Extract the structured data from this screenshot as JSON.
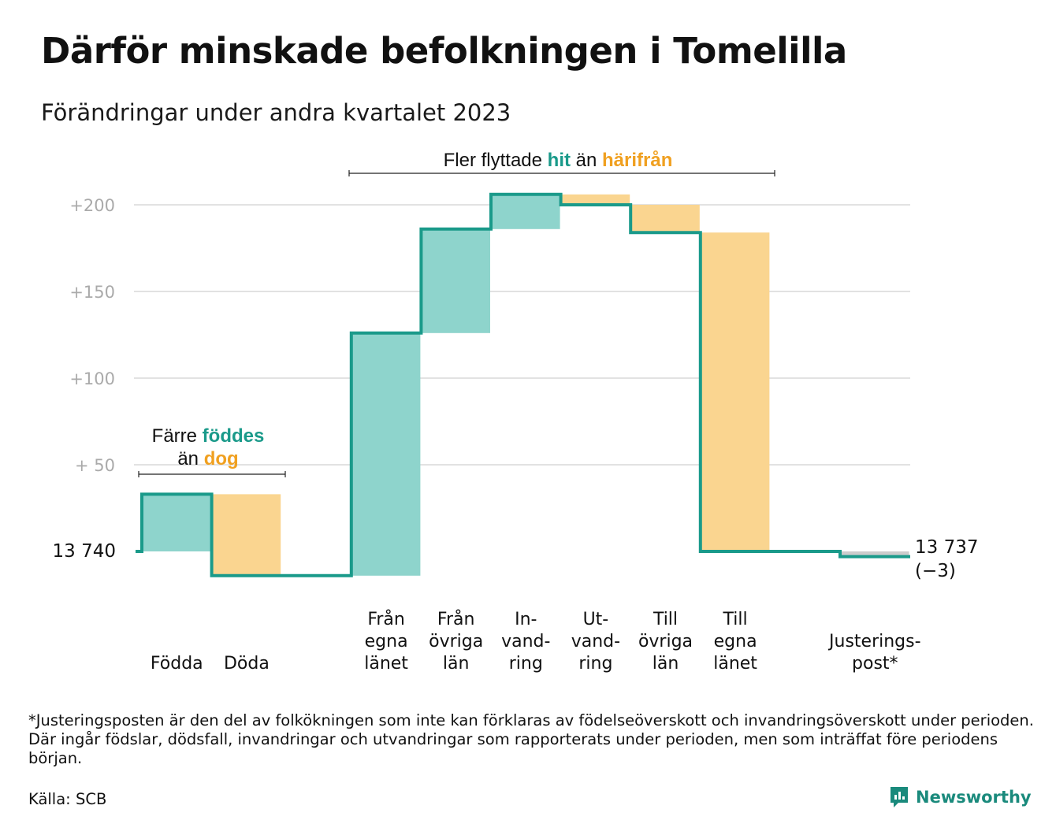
{
  "title": "Därför minskade befolkningen i Tomelilla",
  "subtitle": "Förändringar under andra kvartalet 2023",
  "footnote": "*Justeringsposten är den del av folkökningen som inte kan förklaras av födelseöverskott och invandringsöverskott under perioden. Där ingår födslar, dödsfall, invandringar och utvandringar som rapporterats under perioden, men som inträffat före periodens början.",
  "source": "Källa: SCB",
  "brand": "Newsworthy",
  "colors": {
    "inflow": "#8ed4cc",
    "outflow": "#fad590",
    "line": "#1a9a8a",
    "teal_text": "#1a9a8a",
    "orange_text": "#f0a020",
    "grid": "#e2e2e2",
    "tick": "#aaaaaa",
    "adjust": "#cccccc"
  },
  "chart_data": {
    "type": "waterfall",
    "title": "Därför minskade befolkningen i Tomelilla",
    "subtitle": "Förändringar under andra kvartalet 2023",
    "baseline": 13740,
    "baseline_label": "13 740",
    "end_value": 13737,
    "end_label": "13 737",
    "end_change_label": "(−3)",
    "y_ticks": [
      {
        "value": 50,
        "label": "+  50"
      },
      {
        "value": 100,
        "label": "+100"
      },
      {
        "value": 150,
        "label": "+150"
      },
      {
        "value": 200,
        "label": "+200"
      }
    ],
    "ylim": [
      -25,
      210
    ],
    "grid": true,
    "steps": [
      {
        "label_lines": [
          "Födda"
        ],
        "change": 33,
        "kind": "inflow"
      },
      {
        "label_lines": [
          "Döda"
        ],
        "change": -47,
        "kind": "outflow"
      },
      {
        "label_lines": [],
        "change": 0,
        "kind": "gap"
      },
      {
        "label_lines": [
          "Från",
          "egna",
          "länet"
        ],
        "change": 140,
        "kind": "inflow"
      },
      {
        "label_lines": [
          "Från",
          "övriga",
          "län"
        ],
        "change": 60,
        "kind": "inflow"
      },
      {
        "label_lines": [
          "In-",
          "vand-",
          "ring"
        ],
        "change": 20,
        "kind": "inflow"
      },
      {
        "label_lines": [
          "Ut-",
          "vand-",
          "ring"
        ],
        "change": -6,
        "kind": "outflow"
      },
      {
        "label_lines": [
          "Till",
          "övriga",
          "län"
        ],
        "change": -16,
        "kind": "outflow"
      },
      {
        "label_lines": [
          "Till",
          "egna",
          "länet"
        ],
        "change": -184,
        "kind": "outflow"
      },
      {
        "label_lines": [],
        "change": 0,
        "kind": "gap"
      },
      {
        "label_lines": [
          "Justerings-",
          "post*"
        ],
        "change": -3,
        "kind": "adjustment"
      }
    ],
    "annotations": [
      {
        "id": "birth",
        "parts": [
          {
            "text": "Färre ",
            "style": "plain"
          },
          {
            "text": "föddes",
            "style": "teal"
          },
          {
            "text": "än ",
            "style": "plain",
            "newline": true
          },
          {
            "text": "dog",
            "style": "orange"
          }
        ]
      },
      {
        "id": "migration",
        "parts": [
          {
            "text": "Fler flyttade ",
            "style": "plain"
          },
          {
            "text": "hit",
            "style": "teal"
          },
          {
            "text": " än ",
            "style": "plain"
          },
          {
            "text": "härifrån",
            "style": "orange"
          }
        ]
      }
    ]
  }
}
